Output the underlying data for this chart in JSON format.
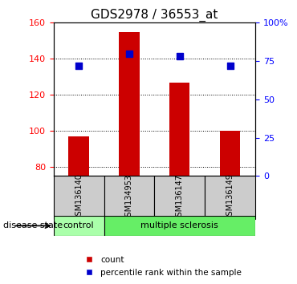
{
  "title": "GDS2978 / 36553_at",
  "samples": [
    "GSM136140",
    "GSM134953",
    "GSM136147",
    "GSM136149"
  ],
  "bar_values": [
    97,
    155,
    127,
    100
  ],
  "percentile_values": [
    72,
    80,
    78,
    72
  ],
  "ylim_left": [
    75,
    160
  ],
  "ylim_right": [
    0,
    100
  ],
  "yticks_left": [
    80,
    100,
    120,
    140,
    160
  ],
  "yticks_right": [
    0,
    25,
    50,
    75,
    100
  ],
  "bar_color": "#cc0000",
  "percentile_color": "#0000cc",
  "bar_width": 0.4,
  "grid_color": "black",
  "control_samples": [
    "GSM136140"
  ],
  "ms_samples": [
    "GSM134953",
    "GSM136147",
    "GSM136149"
  ],
  "control_color": "#aaffaa",
  "ms_color": "#66ee66",
  "label_bg_color": "#cccccc",
  "disease_label": "disease state",
  "control_label": "control",
  "ms_label": "multiple sclerosis",
  "legend_count": "count",
  "legend_pct": "percentile rank within the sample"
}
